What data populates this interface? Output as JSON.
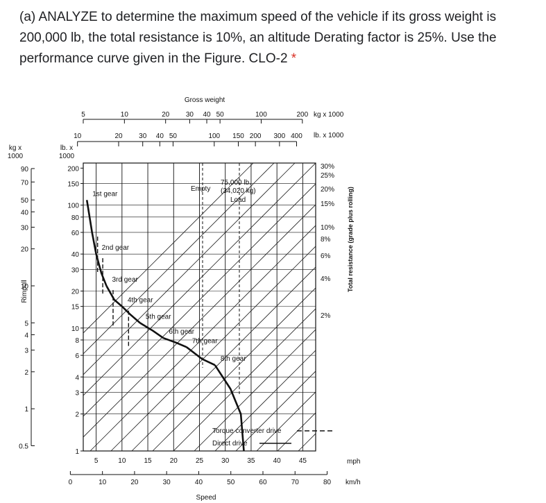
{
  "question": {
    "text": "(a) ANALYZE to determine the maximum speed of the vehicle if its gross weight is 200,000 lb, the total resistance is 10%, an altitude Derating factor is 25%. Use the performance curve given in the Figure. CLO-2",
    "required_mark": "*"
  },
  "chart_data": {
    "type": "line",
    "title": "Gross weight",
    "xlabel": "Speed",
    "ylabel": "Rimpull",
    "resistance_label": "Total resistance (grade plus rolling)",
    "units": {
      "speed_mph": "mph",
      "speed_kmh": "km/h",
      "weight_kg": "kg x 1000",
      "weight_lb": "lb. x 1000",
      "rimpull_kg": "kg x 1000",
      "rimpull_lb": "lb. x 1000"
    },
    "x_mph_ticks": [
      5,
      10,
      15,
      20,
      25,
      30,
      35,
      40,
      45
    ],
    "x_mph_labels": [
      "5",
      "10",
      "15",
      "20",
      "25",
      "30",
      "35",
      "40",
      "45"
    ],
    "x_kmh_ticks": [
      0,
      10,
      20,
      30,
      40,
      50,
      60,
      70,
      80
    ],
    "x_kmh_labels": [
      "0",
      "10",
      "20",
      "30",
      "40",
      "50",
      "60",
      "70",
      "80"
    ],
    "y_lb_ticks": [
      200,
      150,
      100,
      80,
      60,
      40,
      30,
      20,
      15,
      10,
      8,
      6,
      4,
      3,
      2,
      1
    ],
    "y_lb_labels": [
      "200",
      "150",
      "100",
      "80",
      "60",
      "40",
      "30",
      "20",
      "15",
      "10",
      "8",
      "6",
      "4",
      "3",
      "2",
      "1"
    ],
    "y_kg_ticks": [
      90,
      70,
      50,
      40,
      30,
      20,
      10,
      5,
      4,
      3,
      2,
      1,
      0.5
    ],
    "y_kg_labels": [
      "90",
      "70",
      "50",
      "40",
      "30",
      "20",
      "10",
      "5",
      "4",
      "3",
      "2",
      "1",
      "0.5"
    ],
    "top_kg_ticks": [
      5,
      10,
      20,
      30,
      40,
      50,
      100,
      200
    ],
    "top_kg_labels": [
      "5",
      "10",
      "20",
      "30",
      "40",
      "50",
      "100",
      "200"
    ],
    "top_lb_ticks": [
      10,
      20,
      30,
      40,
      50,
      100,
      150,
      200,
      300,
      400
    ],
    "top_lb_labels": [
      "10",
      "20",
      "30",
      "40",
      "50",
      "100",
      "150",
      "200",
      "300",
      "400"
    ],
    "resistance_pct": [
      30,
      25,
      20,
      15,
      10,
      8,
      6,
      4,
      2
    ],
    "resistance_labels": [
      "30%",
      "25%",
      "20%",
      "15%",
      "10%",
      "8%",
      "6%",
      "4%",
      "2%"
    ],
    "gears": [
      {
        "name": "1st gear",
        "points": [
          [
            3.2,
            110
          ],
          [
            4.2,
            60
          ],
          [
            5.0,
            40
          ]
        ]
      },
      {
        "name": "2nd gear",
        "points": [
          [
            5.0,
            40
          ],
          [
            6.0,
            28
          ],
          [
            7.0,
            22
          ]
        ]
      },
      {
        "name": "3rd gear",
        "points": [
          [
            7.0,
            22
          ],
          [
            8.5,
            17
          ],
          [
            10.0,
            15
          ]
        ]
      },
      {
        "name": "4th gear",
        "points": [
          [
            10.0,
            15
          ],
          [
            11.5,
            13
          ],
          [
            13.5,
            11
          ]
        ]
      },
      {
        "name": "5th gear",
        "points": [
          [
            13.5,
            11
          ],
          [
            16.0,
            9.5
          ],
          [
            18.0,
            8.3
          ]
        ]
      },
      {
        "name": "6th gear",
        "points": [
          [
            18.0,
            8.3
          ],
          [
            20.5,
            7.6
          ],
          [
            22.5,
            7
          ]
        ]
      },
      {
        "name": "7th gear",
        "points": [
          [
            22.5,
            7
          ],
          [
            25.5,
            5.6
          ],
          [
            28.0,
            5
          ]
        ]
      },
      {
        "name": "8th gear",
        "points": [
          [
            28.0,
            5
          ],
          [
            31.0,
            3.2
          ],
          [
            33.0,
            2
          ],
          [
            33.6,
            1
          ]
        ]
      }
    ],
    "annotations": {
      "empty": "Empty",
      "loaded": "75,000 lb.",
      "loaded_kg": "(34,020 kg)",
      "load": "Load",
      "torque": "Torque converter drive",
      "direct": "Direct drive"
    }
  }
}
